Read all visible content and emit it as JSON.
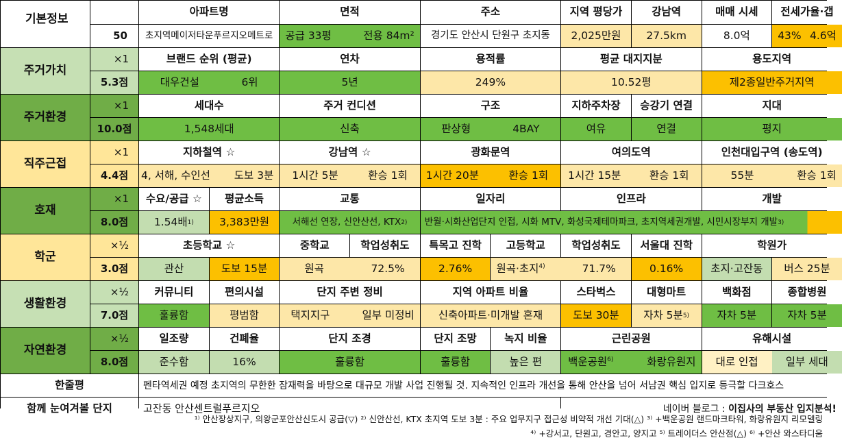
{
  "basic": {
    "section": "기본정보",
    "score": "50",
    "headers": [
      "아파트명",
      "면적",
      "주소",
      "지역 평당가",
      "강남역",
      "매매 시세",
      "전세가율·갭"
    ],
    "apt_name": "초지역메이저타운푸르지오메트로",
    "area_supply": "공급 33평",
    "area_exclusive": "전용 84m²",
    "address": "경기도 안산시 단원구 초지동",
    "price_per_pyeong": "2,025만원",
    "gangnam_distance": "27.5km",
    "sale_price": "8.0억",
    "jeonse_ratio": "43%",
    "gap": "4.6억"
  },
  "sections": {
    "residential_value": {
      "title": "주거가치",
      "mult": "×1",
      "score": "5.3점",
      "headers": [
        "브랜드 순위 (평균)",
        "연차",
        "용적률",
        "평균 대지지분",
        "용도지역"
      ],
      "brand": "대우건설",
      "brand_rank": "6위",
      "age": "5년",
      "far": "249%",
      "land_share": "10.52평",
      "zoning": "제2종일반주거지역"
    },
    "residential_env": {
      "title": "주거환경",
      "mult": "×1",
      "score": "10.0점",
      "headers": [
        "세대수",
        "주거 컨디션",
        "구조",
        "지하주차장",
        "승강기 연결",
        "지대"
      ],
      "households": "1,548세대",
      "condition": "신축",
      "structure": "판상형",
      "bay": "4BAY",
      "parking": "여유",
      "elevator": "연결",
      "terrain": "평지"
    },
    "job_proximity": {
      "title": "직주근접",
      "mult": "×1",
      "score": "4.4점",
      "headers": [
        "지하철역 ☆",
        "강남역 ☆",
        "광화문역",
        "여의도역",
        "인천대입구역 (송도역)"
      ],
      "subway_lines": "4, 서해, 수인선",
      "subway_walk": "도보 3분",
      "gangnam_time": "1시간 5분",
      "gangnam_transfer": "환승 1회",
      "gwanghwamun_time": "1시간 20분",
      "gwanghwamun_transfer": "환승 1회",
      "yeouido_time": "1시간 15분",
      "yeouido_transfer": "환승 1회",
      "incheon_time": "55분",
      "incheon_transfer": "환승 1회"
    },
    "development": {
      "title": "호재",
      "mult": "×1",
      "score": "8.0점",
      "headers": [
        "수요/공급 ☆",
        "평균소득",
        "교통",
        "일자리",
        "인프라",
        "개발"
      ],
      "supply_ratio": "1.54배",
      "supply_note": "1)",
      "avg_income": "3,383만원",
      "transport": "서해선 연장, 신안산선, KTX",
      "transport_note": "2)",
      "jobs_infra_dev": "반월·시화산업단지 인접, 시화 MTV, 화성국제테마파크, 초지역세권개발, 시민시장부지 개발",
      "dev_note": "3)"
    },
    "school": {
      "title": "학군",
      "mult": "×½",
      "score": "3.0점",
      "headers": [
        "초등학교 ☆",
        "중학교",
        "학업성취도",
        "특목고 진학",
        "고등학교",
        "학업성취도",
        "서울대 진학",
        "학원가"
      ],
      "elementary": "관산",
      "elementary_walk": "도보 15분",
      "middle": "원곡",
      "middle_score": "72.5%",
      "special_hs": "2.76%",
      "high": "원곡·초지",
      "high_note": "4)",
      "high_score": "71.7%",
      "snu": "0.16%",
      "academy_area": "초지·고잔동",
      "academy_time": "버스 25분"
    },
    "living_env": {
      "title": "생활환경",
      "mult": "×½",
      "score": "7.0점",
      "headers": [
        "커뮤니티",
        "편의시설",
        "단지 주변 정비",
        "지역 아파트 비율",
        "스타벅스",
        "대형마트",
        "백화점",
        "종합병원"
      ],
      "community": "훌륭함",
      "amenities": "평범함",
      "surroundings_1": "택지지구",
      "surroundings_2": "일부 미정비",
      "apt_ratio": "신축아파트·미개발 혼재",
      "starbucks": "도보 30분",
      "mart": "자차 5분",
      "mart_note": "5)",
      "dept_store": "자차 5분",
      "hospital": "자차 5분"
    },
    "natural_env": {
      "title": "자연환경",
      "mult": "×½",
      "score": "8.0점",
      "headers": [
        "일조량",
        "건폐율",
        "단지 조경",
        "단지 조망",
        "녹지 비율",
        "근린공원",
        "유해시설"
      ],
      "sunlight": "준수함",
      "bcr": "16%",
      "landscaping": "훌륭함",
      "view": "훌륭함",
      "green_ratio": "높은 편",
      "park_1": "백운공원",
      "park_1_note": "6)",
      "park_2": "화랑유원지",
      "hazard_1": "대로 인접",
      "hazard_2": "일부 세대"
    }
  },
  "summary": {
    "label": "한줄평",
    "text": "펜타역세권 예정 초지역의 무한한 잠재력을 바탕으로 대규모 개발 사업 진행될 것. 지속적인 인프라 개선을 통해 안산을 넘어 서남권 핵심 입지로 등극할 다크호스"
  },
  "compare": {
    "label": "함께 눈여겨볼 단지",
    "value": "고잔동 안산센트럴푸르지오",
    "blog_prefix": "네이버 블로그 : ",
    "blog_name": "이집사의 부동산 입지분석!"
  },
  "footnotes": {
    "line1": "¹⁾ 안산장상지구, 의왕군포안산신도시 공급(▽) ²⁾ 신안산선, KTX 초지역 도보 3분 : 주요 업무지구 접근성 비약적 개선 기대(△) ³⁾ +백운공원 랜드마크타워, 화랑유원지 리모델링",
    "line2": "⁴⁾ +강서고, 단원고, 경안고, 양지고 ⁵⁾ 트레이더스 안산점(△) ⁶⁾ +안산 와스타디움"
  },
  "colors": {
    "green": "#6fbe44",
    "light_green": "#c3ddb0",
    "yellow": "#fde7a8",
    "orange": "#fcc000",
    "section_light_green": "#c6e0b4",
    "section_green": "#70ad47",
    "section_yellow": "#ffe699"
  }
}
